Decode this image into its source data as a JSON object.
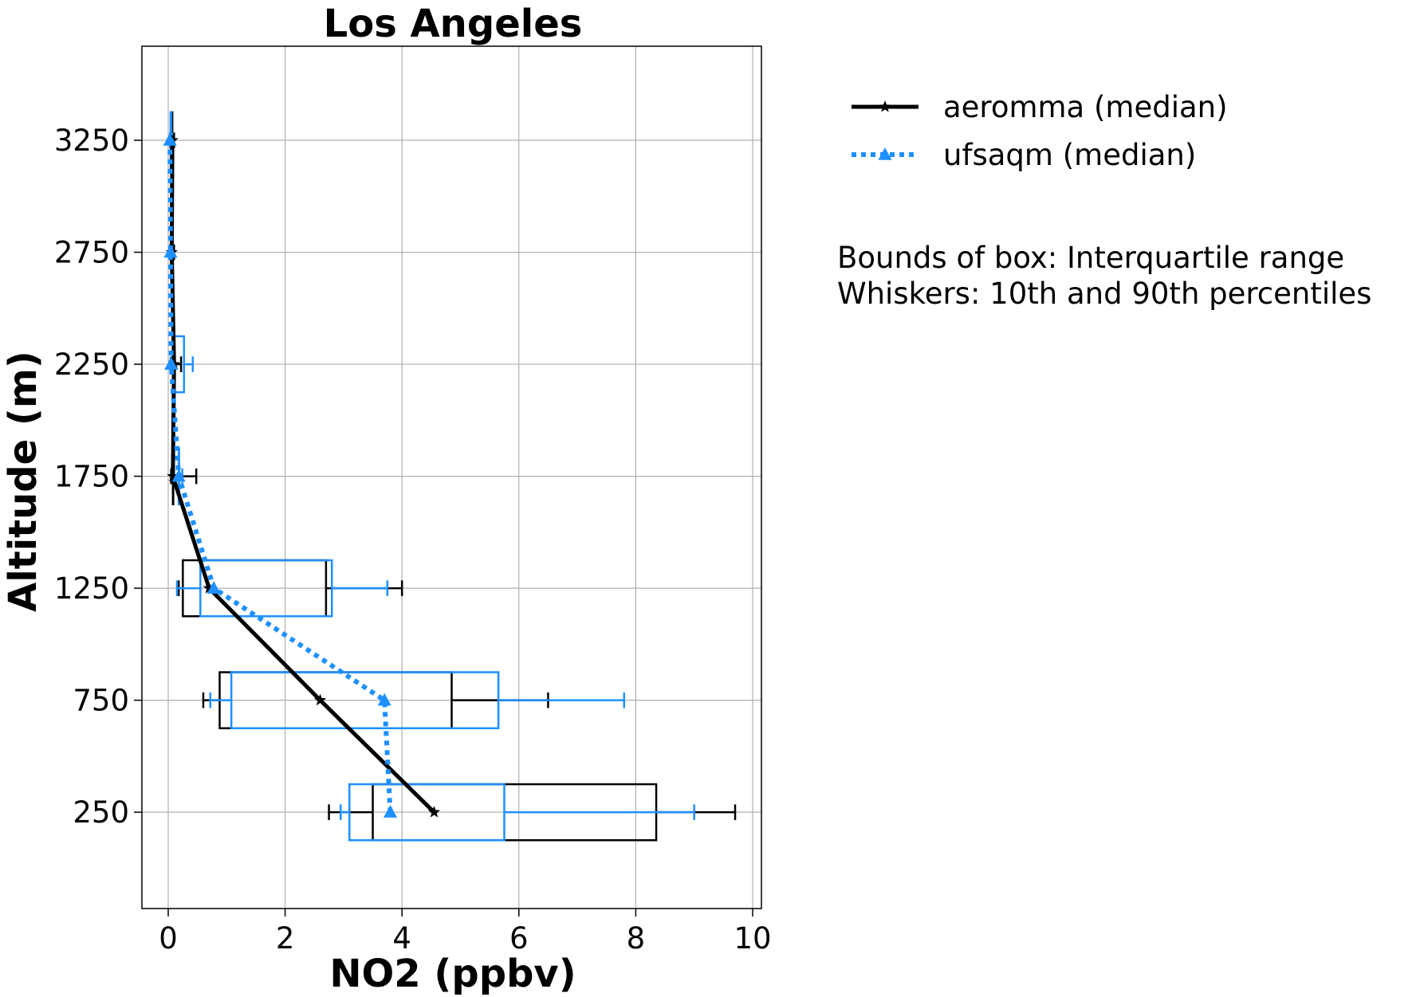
{
  "chart_data": {
    "type": "box",
    "title": "Los Angeles",
    "xlabel": "NO2 (ppbv)",
    "ylabel": "Altitude (m)",
    "xlim": [
      -0.45,
      10.15
    ],
    "ylim": [
      -180,
      3670
    ],
    "xticks": [
      0,
      2,
      4,
      6,
      8,
      10
    ],
    "yticks": [
      250,
      750,
      1250,
      1750,
      2250,
      2750,
      3250
    ],
    "grid": true,
    "legend_position": "upper-right-outside",
    "altitude_bins": [
      250,
      750,
      1250,
      1750,
      2250,
      2750,
      3250
    ],
    "series": [
      {
        "name": "aeromma (median)",
        "color": "#000000",
        "line_style": "solid",
        "marker": "star",
        "median": [
          4.55,
          2.6,
          0.7,
          0.08,
          0.1,
          0.06,
          0.07
        ],
        "q1": [
          3.5,
          0.88,
          0.25,
          0.08,
          0.09,
          0.06,
          0.06
        ],
        "q3": [
          8.35,
          4.85,
          2.7,
          0.08,
          0.1,
          0.07,
          0.07
        ],
        "p10": [
          2.75,
          0.6,
          0.18,
          0.05,
          0.07,
          0.04,
          0.04
        ],
        "p90": [
          9.7,
          6.5,
          4.0,
          0.48,
          0.22,
          0.1,
          0.1
        ]
      },
      {
        "name": "ufsaqm (median)",
        "color": "#1e90ff",
        "line_style": "dotted",
        "marker": "triangle",
        "median": [
          3.8,
          3.7,
          0.78,
          0.18,
          0.05,
          0.04,
          0.03
        ],
        "q1": [
          3.1,
          1.08,
          0.55,
          0.18,
          0.08,
          0.05,
          0.04
        ],
        "q3": [
          5.75,
          5.65,
          2.8,
          0.18,
          0.27,
          0.06,
          0.05
        ],
        "p10": [
          2.95,
          0.72,
          0.15,
          0.1,
          0.04,
          0.03,
          0.03
        ],
        "p90": [
          9.0,
          7.8,
          3.75,
          0.24,
          0.42,
          0.08,
          0.07
        ]
      }
    ],
    "annotation": {
      "lines": [
        "Bounds of box: Interquartile range",
        "Whiskers: 10th and 90th percentiles"
      ]
    }
  }
}
